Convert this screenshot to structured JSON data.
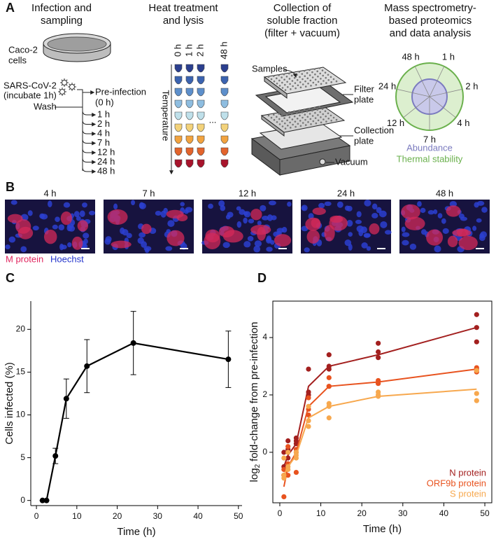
{
  "figure": {
    "panel_a": {
      "label": "A",
      "infection": {
        "title": [
          "Infection and",
          "sampling"
        ],
        "cells": [
          "Caco-2",
          "cells"
        ],
        "virus": [
          "SARS-CoV-2",
          "(incubate 1h)"
        ],
        "pre_infection": [
          "Pre-infection",
          "(0 h)"
        ],
        "wash": "Wash",
        "times": [
          "1 h",
          "2 h",
          "4 h",
          "7 h",
          "12 h",
          "24 h",
          "48 h"
        ]
      },
      "heat": {
        "title": [
          "Heat treatment",
          "and lysis"
        ],
        "columns": [
          "0 h",
          "1 h",
          "2 h",
          "48 h"
        ],
        "ellipsis": "...",
        "axis": "Temperature"
      },
      "collection": {
        "title": [
          "Collection of",
          "soluble fraction",
          "(filter + vacuum)"
        ],
        "samples": "Samples",
        "filter": [
          "Filter",
          "plate"
        ],
        "collection": [
          "Collection",
          "plate"
        ],
        "vacuum": "Vacuum"
      },
      "ms": {
        "title": [
          "Mass spectrometry-",
          "based proteomics",
          "and data analysis"
        ],
        "times": [
          "1 h",
          "2 h",
          "4 h",
          "7 h",
          "12 h",
          "24 h",
          "48 h"
        ],
        "abundance": "Abundance",
        "stability": "Thermal stability"
      }
    },
    "panel_b": {
      "label": "B",
      "times": [
        "4 h",
        "7 h",
        "12 h",
        "24 h",
        "48 h"
      ],
      "stain_m": "M protein",
      "stain_h": "Hoechst"
    },
    "panel_c_label": "C",
    "panel_d_label": "D"
  },
  "chart_data": [
    {
      "type": "line",
      "x_label": "Time (h)",
      "y_label": "Cells infected (%)",
      "x": [
        1.5,
        2.5,
        4.7,
        7.4,
        12.5,
        24,
        47.5
      ],
      "series": [
        {
          "color": "#000000",
          "values": [
            0,
            0,
            5.2,
            11.9,
            15.7,
            18.4,
            16.5
          ],
          "errors": [
            0,
            0,
            0.9,
            2.3,
            3.1,
            3.7,
            3.3
          ]
        }
      ],
      "xlim": [
        -1.4,
        50.9
      ],
      "ylim": [
        -0.6,
        23.3
      ],
      "xticks": [
        0,
        10,
        20,
        30,
        40,
        50
      ],
      "yticks": [
        0,
        5,
        10,
        15,
        20
      ],
      "grid": false
    },
    {
      "type": "scatter",
      "x_label": "Time (h)",
      "y_label": [
        "log",
        "2",
        "fold-change from pre-infection"
      ],
      "fit_x": [
        1,
        2,
        4,
        7,
        12,
        24,
        48
      ],
      "series": [
        {
          "name": "N protein",
          "color": "#a3201f",
          "x": [
            1,
            1,
            1,
            2,
            2,
            2,
            4,
            4,
            4,
            7,
            7,
            7,
            12,
            12,
            12,
            24,
            24,
            24,
            48,
            48,
            48
          ],
          "values": [
            -0.5,
            -0.8,
            0.0,
            0.4,
            0.1,
            -0.2,
            0.5,
            0.4,
            0.3,
            2.9,
            2.0,
            2.1,
            3.4,
            2.9,
            3.0,
            3.8,
            3.5,
            3.3,
            4.8,
            4.35,
            3.85
          ],
          "fit": [
            -0.5,
            -0.1,
            0.3,
            2.3,
            3.0,
            3.4,
            4.35
          ]
        },
        {
          "name": "ORF9b protein",
          "color": "#e8531f",
          "x": [
            1,
            1,
            1,
            2,
            2,
            2,
            4,
            4,
            4,
            7,
            7,
            7,
            12,
            12,
            12,
            24,
            24,
            24,
            48,
            48,
            48
          ],
          "values": [
            -1.55,
            -0.8,
            -0.6,
            -0.8,
            -0.4,
            0.2,
            -0.7,
            0.0,
            0.1,
            1.9,
            1.3,
            1.5,
            2.6,
            2.3,
            2.3,
            2.5,
            2.4,
            2.4,
            2.9,
            2.95,
            2.8
          ],
          "fit": [
            -1.2,
            -0.5,
            0.0,
            1.6,
            2.3,
            2.45,
            2.9
          ]
        },
        {
          "name": "S protein",
          "color": "#f7a84e",
          "x": [
            1,
            1,
            1,
            2,
            2,
            2,
            4,
            4,
            4,
            7,
            7,
            7,
            12,
            12,
            12,
            24,
            24,
            24,
            48,
            48,
            48
          ],
          "values": [
            -0.8,
            -0.9,
            -0.2,
            -0.5,
            -0.6,
            0.0,
            -0.2,
            -0.1,
            0.0,
            1.6,
            1.1,
            0.9,
            1.2,
            1.7,
            1.6,
            2.1,
            2.0,
            1.95,
            2.85,
            2.05,
            1.8
          ],
          "fit": [
            -0.8,
            -0.5,
            -0.1,
            1.2,
            1.6,
            1.95,
            2.2
          ]
        }
      ],
      "xlim": [
        -1.7,
        51.7
      ],
      "ylim": [
        -1.76,
        5.27
      ],
      "xticks": [
        0,
        10,
        20,
        30,
        40,
        50
      ],
      "yticks": [
        0,
        2,
        4
      ],
      "grid": false,
      "legend": "lower right"
    }
  ]
}
